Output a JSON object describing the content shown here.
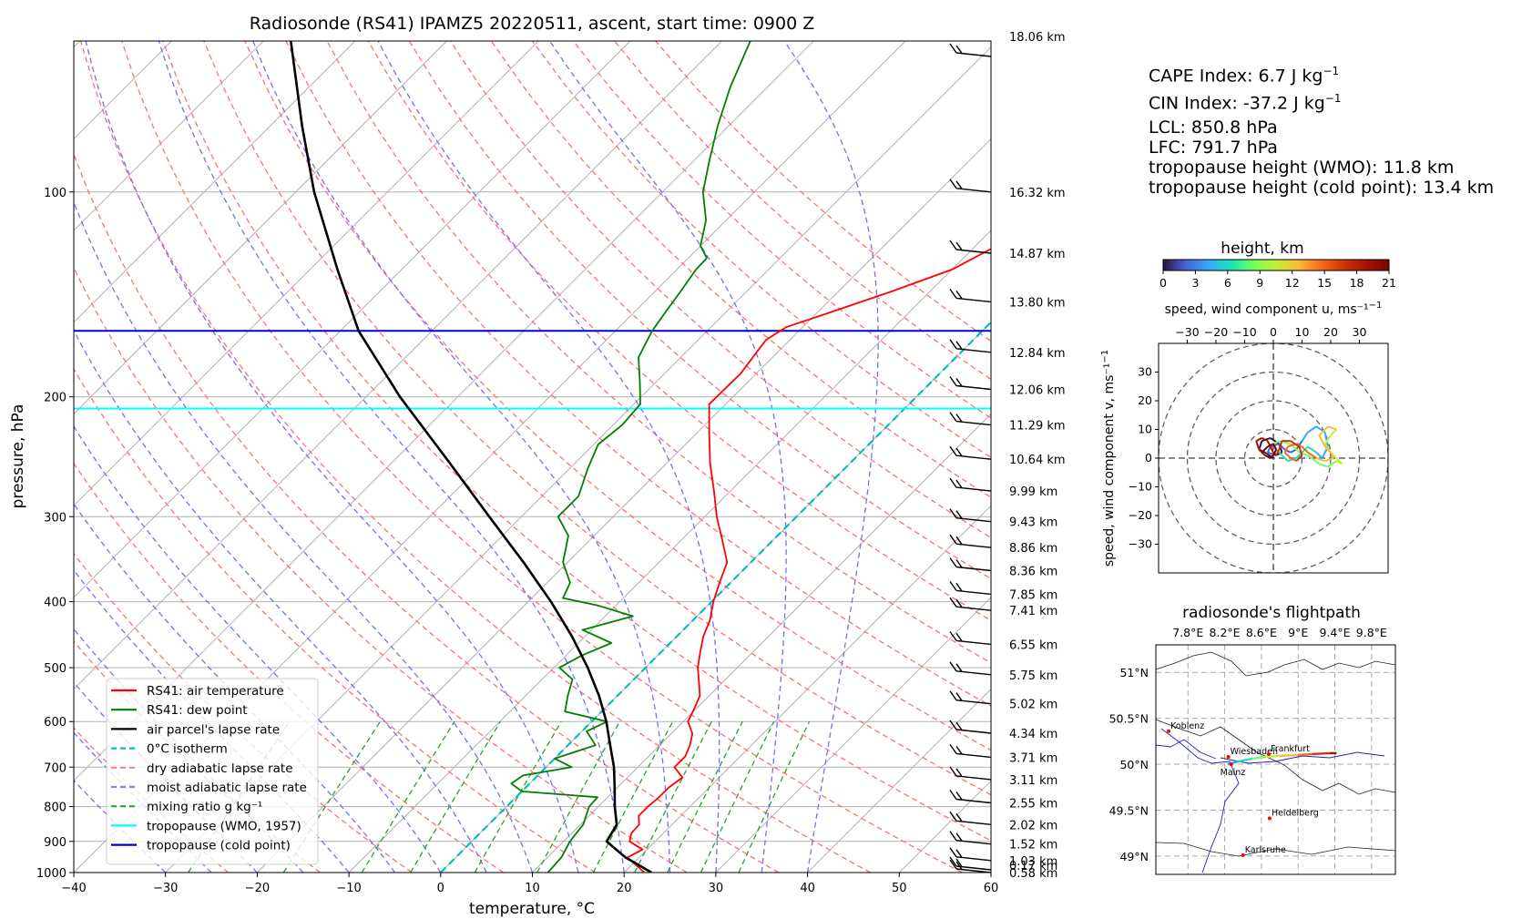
{
  "chart_data": [
    {
      "type": "line",
      "title": "Radiosonde (RS41) IPAMZ5 20220511, ascent, start time: 0900 Z",
      "xlabel": "temperature, °C",
      "ylabel": "pressure, hPa",
      "xlim": [
        -40,
        60
      ],
      "ylim": [
        1000,
        60
      ],
      "y_log_scale": true,
      "skew": "skew-T",
      "grid": true,
      "legend_position": "lower-left",
      "x_ticks": [
        -40,
        -30,
        -20,
        -10,
        0,
        10,
        20,
        30,
        40,
        50,
        60
      ],
      "y_ticks": [
        100,
        200,
        300,
        400,
        500,
        600,
        700,
        800,
        900,
        1000
      ],
      "height_labels": [
        {
          "p": 65,
          "label": "18.06 km"
        },
        {
          "p": 100,
          "label": "16.32 km"
        },
        {
          "p": 123,
          "label": "14.87 km"
        },
        {
          "p": 145,
          "label": "13.80 km"
        },
        {
          "p": 172,
          "label": "12.84 km"
        },
        {
          "p": 195,
          "label": "12.06 km"
        },
        {
          "p": 220,
          "label": "11.29 km"
        },
        {
          "p": 247,
          "label": "10.64 km"
        },
        {
          "p": 275,
          "label": "9.99 km"
        },
        {
          "p": 305,
          "label": "9.43 km"
        },
        {
          "p": 333,
          "label": "8.86 km"
        },
        {
          "p": 360,
          "label": "8.36 km"
        },
        {
          "p": 390,
          "label": "7.85 km"
        },
        {
          "p": 412,
          "label": "7.41 km"
        },
        {
          "p": 462,
          "label": "6.55 km"
        },
        {
          "p": 512,
          "label": "5.75 km"
        },
        {
          "p": 565,
          "label": "5.02 km"
        },
        {
          "p": 624,
          "label": "4.34 km"
        },
        {
          "p": 677,
          "label": "3.71 km"
        },
        {
          "p": 730,
          "label": "3.11 km"
        },
        {
          "p": 790,
          "label": "2.55 km"
        },
        {
          "p": 850,
          "label": "2.02 km"
        },
        {
          "p": 908,
          "label": "1.52 km"
        },
        {
          "p": 960,
          "label": "1.03 km"
        },
        {
          "p": 1000,
          "label": "0.58 km"
        },
        {
          "p": 1048,
          "label": "0.17 km"
        }
      ],
      "tropopause_wmo_hpa": 208,
      "tropopause_cold_point_hpa": 160,
      "series": [
        {
          "name": "RS41: air temperature",
          "color": "#ff0000",
          "points": [
            [
              1000,
              22.2
            ],
            [
              975,
              20.5
            ],
            [
              950,
              18.7
            ],
            [
              925,
              19.5
            ],
            [
              900,
              17.2
            ],
            [
              875,
              16.5
            ],
            [
              850,
              16.4
            ],
            [
              825,
              15.4
            ],
            [
              800,
              15.4
            ],
            [
              775,
              15.6
            ],
            [
              750,
              15.6
            ],
            [
              725,
              16.0
            ],
            [
              700,
              14.0
            ],
            [
              675,
              14.0
            ],
            [
              650,
              13.3
            ],
            [
              625,
              12.3
            ],
            [
              600,
              10.5
            ],
            [
              575,
              9.8
            ],
            [
              550,
              9.0
            ],
            [
              525,
              7.4
            ],
            [
              500,
              5.7
            ],
            [
              475,
              4.3
            ],
            [
              450,
              2.9
            ],
            [
              425,
              1.8
            ],
            [
              400,
              0.2
            ],
            [
              375,
              -1.2
            ],
            [
              350,
              -2.6
            ],
            [
              325,
              -5.5
            ],
            [
              300,
              -8.7
            ],
            [
              275,
              -11.8
            ],
            [
              250,
              -15.3
            ],
            [
              225,
              -18.8
            ],
            [
              205,
              -21.8
            ],
            [
              185,
              -21.7
            ],
            [
              165,
              -22.6
            ],
            [
              158,
              -21.8
            ],
            [
              150,
              -18.5
            ],
            [
              140,
              -14.2
            ],
            [
              130,
              -10.0
            ],
            [
              120,
              -7.7
            ],
            [
              110,
              -5.3
            ],
            [
              100,
              -4.1
            ],
            [
              85,
              -3.2
            ],
            [
              70,
              -1.8
            ],
            [
              60,
              -1.5
            ]
          ]
        },
        {
          "name": "RS41: dew point",
          "color": "#007f00",
          "points": [
            [
              1000,
              11.7
            ],
            [
              950,
              11.5
            ],
            [
              900,
              10.7
            ],
            [
              850,
              10.3
            ],
            [
              800,
              9.0
            ],
            [
              775,
              8.9
            ],
            [
              760,
              0.0
            ],
            [
              740,
              -2.0
            ],
            [
              720,
              -1.6
            ],
            [
              700,
              2.8
            ],
            [
              680,
              0.0
            ],
            [
              650,
              3.0
            ],
            [
              620,
              0.5
            ],
            [
              600,
              1.7
            ],
            [
              580,
              -4.0
            ],
            [
              550,
              -5.4
            ],
            [
              520,
              -6.7
            ],
            [
              500,
              -9.4
            ],
            [
              480,
              -8.3
            ],
            [
              460,
              -6.4
            ],
            [
              440,
              -11.0
            ],
            [
              420,
              -7.0
            ],
            [
              405,
              -12.0
            ],
            [
              395,
              -16.6
            ],
            [
              375,
              -17.5
            ],
            [
              350,
              -20.5
            ],
            [
              320,
              -22.8
            ],
            [
              300,
              -26.0
            ],
            [
              280,
              -26.0
            ],
            [
              255,
              -28.0
            ],
            [
              235,
              -29.5
            ],
            [
              220,
              -29.0
            ],
            [
              205,
              -29.3
            ],
            [
              190,
              -31.8
            ],
            [
              175,
              -34.6
            ],
            [
              160,
              -36.0
            ],
            [
              150,
              -36.6
            ],
            [
              140,
              -37.2
            ],
            [
              130,
              -37.9
            ],
            [
              125,
              -38.0
            ],
            [
              120,
              -40.0
            ],
            [
              110,
              -42.2
            ],
            [
              100,
              -45.6
            ],
            [
              90,
              -48.3
            ],
            [
              80,
              -51.2
            ],
            [
              70,
              -54.1
            ],
            [
              60,
              -56.9
            ]
          ]
        },
        {
          "name": "air parcel's lapse rate",
          "color": "#000000",
          "points": [
            [
              1000,
              23.0
            ],
            [
              950,
              18.5
            ],
            [
              900,
              14.7
            ],
            [
              851,
              14.0
            ],
            [
              800,
              11.8
            ],
            [
              750,
              9.7
            ],
            [
              700,
              7.4
            ],
            [
              650,
              4.6
            ],
            [
              600,
              1.6
            ],
            [
              550,
              -2.0
            ],
            [
              500,
              -6.3
            ],
            [
              450,
              -11.4
            ],
            [
              400,
              -17.5
            ],
            [
              350,
              -24.8
            ],
            [
              300,
              -33.5
            ],
            [
              250,
              -43.7
            ],
            [
              200,
              -56.3
            ],
            [
              160,
              -68.0
            ],
            [
              130,
              -77.0
            ],
            [
              100,
              -88.0
            ],
            [
              80,
              -96.5
            ],
            [
              60,
              -107.0
            ]
          ]
        }
      ],
      "legend": [
        {
          "label": "RS41: air temperature",
          "color": "#ff0000",
          "style": "solid"
        },
        {
          "label": "RS41: dew point",
          "color": "#007f00",
          "style": "solid"
        },
        {
          "label": "air parcel's lapse rate",
          "color": "#000000",
          "style": "solid"
        },
        {
          "label": "0°C isotherm",
          "color": "#00bfbf",
          "style": "dashed"
        },
        {
          "label": "dry adiabatic lapse rate",
          "color": "#ff8080",
          "style": "dashed"
        },
        {
          "label": "moist adiabatic lapse rate",
          "color": "#8080ff",
          "style": "dashed"
        },
        {
          "label": "mixing ratio g kg⁻¹",
          "color": "#2ca02c",
          "style": "dashed"
        },
        {
          "label": "tropopause (WMO, 1957)",
          "color": "#00ffff",
          "style": "solid"
        },
        {
          "label": "tropopause (cold point)",
          "color": "#0000cd",
          "style": "solid"
        }
      ]
    },
    {
      "type": "scatter",
      "title": "height, km",
      "xlabel": "speed, wind component u, ms⁻¹",
      "ylabel": "speed, wind component v, ms⁻¹",
      "xlim": [
        -40,
        40
      ],
      "ylim": [
        -40,
        40
      ],
      "x_ticks": [
        -30,
        -20,
        -10,
        0,
        10,
        20,
        30
      ],
      "y_ticks": [
        -30,
        -20,
        -10,
        0,
        10,
        20,
        30
      ],
      "colorbar_ticks": [
        0,
        3,
        6,
        9,
        12,
        15,
        18,
        21
      ],
      "hodograph_uv": [
        [
          0,
          0
        ],
        [
          -3,
          2
        ],
        [
          -5,
          3
        ],
        [
          -4,
          6
        ],
        [
          -1,
          7
        ],
        [
          2,
          5
        ],
        [
          3,
          2
        ],
        [
          1,
          1
        ],
        [
          -2,
          2
        ],
        [
          -1,
          4
        ],
        [
          2,
          5
        ],
        [
          4,
          3
        ],
        [
          6,
          2
        ],
        [
          8,
          3
        ],
        [
          10,
          6
        ],
        [
          12,
          9
        ],
        [
          15,
          11
        ],
        [
          18,
          9
        ],
        [
          19,
          4
        ],
        [
          17,
          0
        ],
        [
          15,
          2
        ],
        [
          12,
          4
        ],
        [
          10,
          2
        ],
        [
          8,
          0
        ],
        [
          5,
          -1
        ],
        [
          3,
          1
        ],
        [
          1,
          3
        ],
        [
          0,
          5
        ],
        [
          2,
          6
        ],
        [
          6,
          5
        ],
        [
          9,
          2
        ],
        [
          12,
          1
        ],
        [
          16,
          -2
        ],
        [
          19,
          -3
        ],
        [
          22,
          -1
        ],
        [
          24,
          -2
        ],
        [
          22,
          0
        ],
        [
          20,
          2
        ],
        [
          18,
          5
        ],
        [
          20,
          8
        ],
        [
          22,
          10
        ],
        [
          19,
          11
        ],
        [
          16,
          8
        ],
        [
          18,
          4
        ],
        [
          20,
          2
        ],
        [
          21,
          0
        ],
        [
          18,
          -1
        ],
        [
          15,
          0
        ],
        [
          12,
          2
        ],
        [
          10,
          4
        ],
        [
          8,
          5
        ],
        [
          5,
          4
        ],
        [
          4,
          2
        ],
        [
          6,
          0
        ],
        [
          8,
          -1
        ],
        [
          10,
          1
        ],
        [
          9,
          4
        ],
        [
          6,
          6
        ],
        [
          3,
          6
        ],
        [
          2,
          3
        ],
        [
          1,
          1
        ],
        [
          0,
          2
        ],
        [
          -1,
          4
        ],
        [
          -2,
          6
        ],
        [
          -4,
          7
        ],
        [
          -6,
          6
        ],
        [
          -5,
          3
        ],
        [
          -3,
          1
        ],
        [
          -1,
          0
        ],
        [
          0,
          1
        ],
        [
          1,
          3
        ],
        [
          0,
          5
        ],
        [
          -2,
          4
        ],
        [
          -4,
          2
        ]
      ]
    }
  ],
  "stats": {
    "cape": "CAPE Index: 6.7 J kg",
    "cape_exp": "−1",
    "cin": "CIN Index: -37.2 J kg",
    "cin_exp": "−1",
    "lcl": "LCL: 850.8 hPa",
    "lfc": "LFC: 791.7 hPa",
    "trop_wmo": "tropopause height (WMO): 11.8 km",
    "trop_cold": "tropopause height (cold point): 13.4 km"
  },
  "map": {
    "title": "radiosonde's flightpath",
    "lon_ticks": [
      "7.8°E",
      "8.2°E",
      "8.6°E",
      "9°E",
      "9.4°E",
      "9.8°E"
    ],
    "lat_ticks": [
      "51°N",
      "50.5°N",
      "50°N",
      "49.5°N",
      "49°N"
    ],
    "cities": [
      {
        "name": "Koblenz",
        "lon": 7.59,
        "lat": 50.36
      },
      {
        "name": "Wiesbaden",
        "lon": 8.24,
        "lat": 50.08
      },
      {
        "name": "Mainz",
        "lon": 8.27,
        "lat": 50.0
      },
      {
        "name": "Frankfurt",
        "lon": 8.68,
        "lat": 50.11
      },
      {
        "name": "Heidelberg",
        "lon": 8.69,
        "lat": 49.41
      },
      {
        "name": "Karlsruhe",
        "lon": 8.4,
        "lat": 49.01
      }
    ],
    "track": [
      [
        8.23,
        50.0
      ],
      [
        8.35,
        50.03
      ],
      [
        8.5,
        50.06
      ],
      [
        8.65,
        50.08
      ],
      [
        8.8,
        50.09
      ],
      [
        9.0,
        50.1
      ],
      [
        9.15,
        50.11
      ],
      [
        9.35,
        50.12
      ],
      [
        9.42,
        50.12
      ]
    ]
  }
}
